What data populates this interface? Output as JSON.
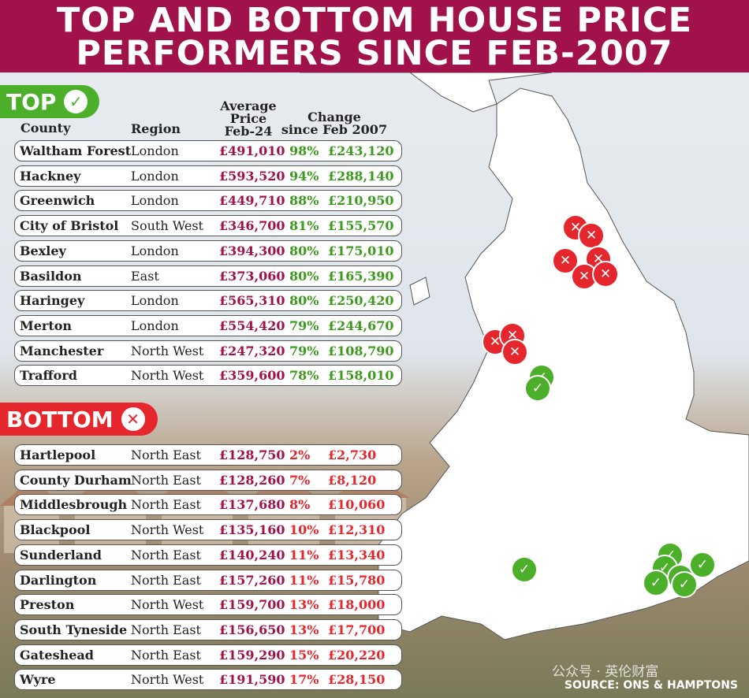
{
  "title": {
    "line1": "TOP AND BOTTOM HOUSE PRICE",
    "line2": "PERFORMERS SINCE FEB-2007"
  },
  "colors": {
    "header": "#a2124a",
    "top_accent": "#4caf2a",
    "bottom_accent": "#e6262d",
    "price": "#a2124a"
  },
  "top_label": "TOP",
  "bottom_label": "BOTTOM",
  "icons": {
    "top": "check-icon",
    "bottom": "cross-icon"
  },
  "columns": {
    "county": "County",
    "region": "Region",
    "price_l1": "Average",
    "price_l2": "Price",
    "price_l3": "Feb-24",
    "change_l1": "Change",
    "change_l2": "since Feb 2007"
  },
  "top_rows": [
    {
      "county": "Waltham Forest",
      "region": "London",
      "price": "£491,010",
      "pct": "98%",
      "change": "£243,120"
    },
    {
      "county": "Hackney",
      "region": "London",
      "price": "£593,520",
      "pct": "94%",
      "change": "£288,140"
    },
    {
      "county": "Greenwich",
      "region": "London",
      "price": "£449,710",
      "pct": "88%",
      "change": "£210,950"
    },
    {
      "county": "City of Bristol",
      "region": "South West",
      "price": "£346,700",
      "pct": "81%",
      "change": "£155,570"
    },
    {
      "county": "Bexley",
      "region": "London",
      "price": "£394,300",
      "pct": "80%",
      "change": "£175,010"
    },
    {
      "county": "Basildon",
      "region": "East",
      "price": "£373,060",
      "pct": "80%",
      "change": "£165,390"
    },
    {
      "county": "Haringey",
      "region": "London",
      "price": "£565,310",
      "pct": "80%",
      "change": "£250,420"
    },
    {
      "county": "Merton",
      "region": "London",
      "price": "£554,420",
      "pct": "79%",
      "change": "£244,670"
    },
    {
      "county": "Manchester",
      "region": "North West",
      "price": "£247,320",
      "pct": "79%",
      "change": "£108,790"
    },
    {
      "county": "Trafford",
      "region": "North West",
      "price": "£359,600",
      "pct": "78%",
      "change": "£158,010"
    }
  ],
  "bottom_rows": [
    {
      "county": "Hartlepool",
      "region": "North East",
      "price": "£128,750",
      "pct": "2%",
      "change": "£2,730"
    },
    {
      "county": "County Durham",
      "region": "North East",
      "price": "£128,260",
      "pct": "7%",
      "change": "£8,120"
    },
    {
      "county": "Middlesbrough",
      "region": "North East",
      "price": "£137,680",
      "pct": "8%",
      "change": "£10,060"
    },
    {
      "county": "Blackpool",
      "region": "North West",
      "price": "£135,160",
      "pct": "10%",
      "change": "£12,310"
    },
    {
      "county": "Sunderland",
      "region": "North East",
      "price": "£140,240",
      "pct": "11%",
      "change": "£13,340"
    },
    {
      "county": "Darlington",
      "region": "North East",
      "price": "£157,260",
      "pct": "11%",
      "change": "£15,780"
    },
    {
      "county": "Preston",
      "region": "North West",
      "price": "£159,700",
      "pct": "13%",
      "change": "£18,000"
    },
    {
      "county": "South Tyneside",
      "region": "North East",
      "price": "£156,650",
      "pct": "13%",
      "change": "£17,700"
    },
    {
      "county": "Gateshead",
      "region": "North East",
      "price": "£159,290",
      "pct": "15%",
      "change": "£20,220"
    },
    {
      "county": "Wyre",
      "region": "North West",
      "price": "£191,590",
      "pct": "17%",
      "change": "£28,150"
    }
  ],
  "source": "SOURCE: ONS & HAMPTONS",
  "watermark": "公众号 · 英伦财富"
}
